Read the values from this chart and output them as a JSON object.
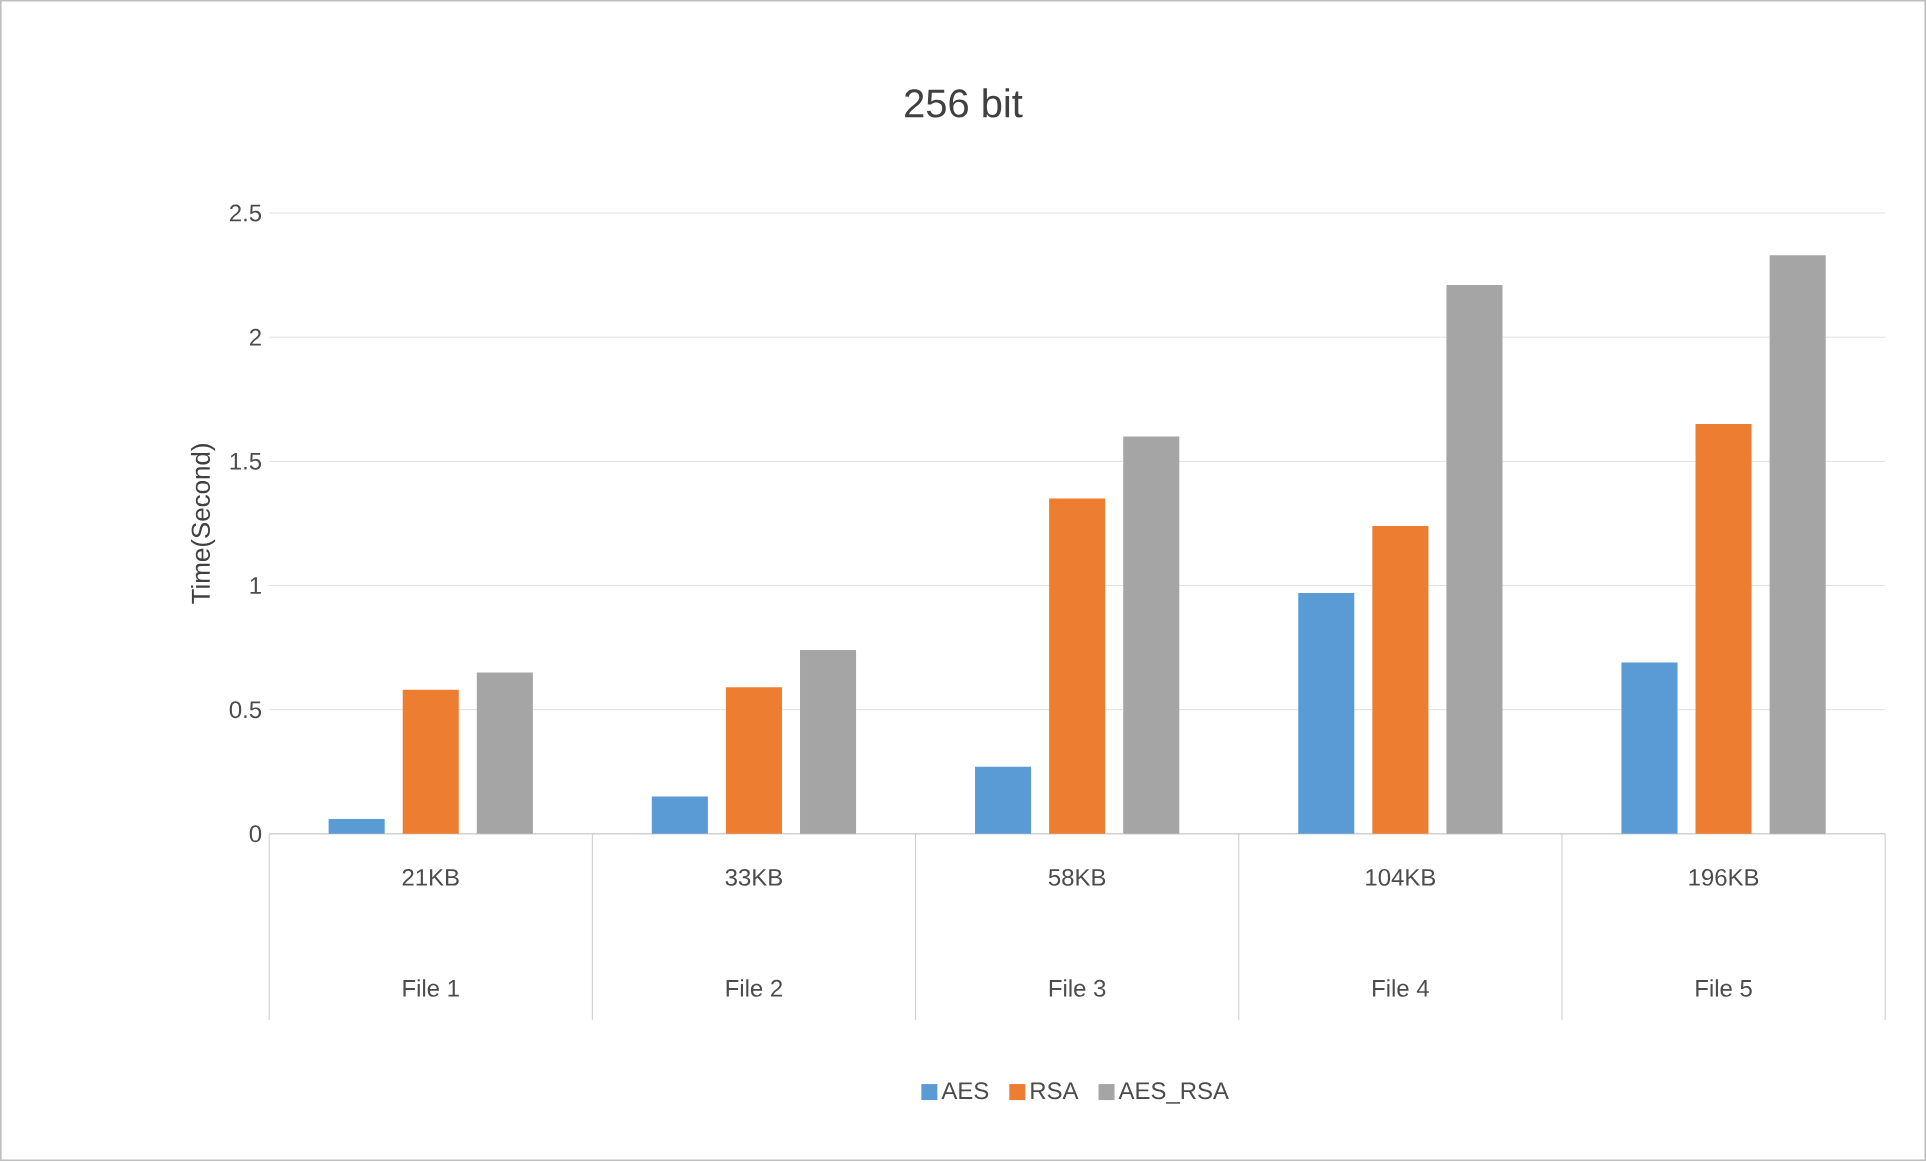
{
  "chart_data": {
    "type": "bar",
    "title": "256 bit",
    "ylabel": "Time(Second)",
    "categories": [
      "21KB",
      "33KB",
      "58KB",
      "104KB",
      "196KB"
    ],
    "annotations": [
      "File 1",
      "File 2",
      "File 3",
      "File 4",
      "File 5"
    ],
    "series": [
      {
        "name": "AES",
        "color": "#5b9bd5",
        "values": [
          0.06,
          0.15,
          0.27,
          0.97,
          0.69
        ]
      },
      {
        "name": "RSA",
        "color": "#ed7d31",
        "values": [
          0.58,
          0.59,
          1.35,
          1.24,
          1.65
        ]
      },
      {
        "name": "AES_RSA",
        "color": "#a5a5a5",
        "values": [
          0.65,
          0.74,
          1.6,
          2.21,
          2.33
        ]
      }
    ],
    "ylim": [
      0,
      2.5
    ],
    "yticks": [
      0,
      0.5,
      1,
      1.5,
      2,
      2.5
    ],
    "grid": "y",
    "legend": "bottom"
  }
}
